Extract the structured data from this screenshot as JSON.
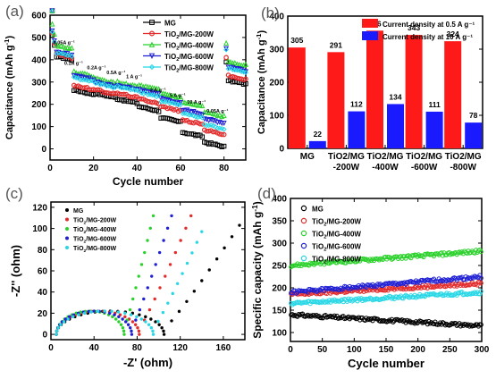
{
  "panel_labels": [
    "(a)",
    "(b)",
    "(c)",
    "(d)"
  ],
  "chart_data": [
    {
      "panel": "(a)",
      "type": "scatter",
      "xlabel": "Cycle number",
      "ylabel": "Capacitance (mAh g",
      "ylabel_sup": "-1",
      "ylabel_close": ")",
      "xlim": [
        0,
        90
      ],
      "ylim": [
        -50,
        600
      ],
      "xticks": [
        "0",
        "20",
        "40",
        "60",
        "80"
      ],
      "yticks": [
        "0",
        "100",
        "200",
        "300",
        "400",
        "500",
        "600"
      ],
      "legend_position": "top-right",
      "annotations": [
        "0.05A g⁻¹",
        "0.1A g⁻¹",
        "0.2A g⁻¹",
        "0.5A g⁻¹",
        "1 A g⁻¹",
        "2 A g⁻¹",
        "5 A g⁻¹",
        "10 A g⁻¹",
        "0.05A g⁻¹"
      ],
      "series": [
        {
          "name": "MG",
          "legend": [
            "MG",
            ""
          ],
          "color": "#000000",
          "marker": "square",
          "plateaus": [
            420,
            265,
            250,
            225,
            190,
            140,
            75,
            30,
            310
          ]
        },
        {
          "name": "TiO2/MG-200W",
          "legend": [
            "TiO",
            "2",
            "/MG-200W"
          ],
          "color": "#e32b2b",
          "marker": "circle",
          "plateaus": [
            430,
            285,
            265,
            250,
            225,
            190,
            130,
            85,
            330
          ]
        },
        {
          "name": "TiO2/MG-400W",
          "legend": [
            "TiO",
            "2",
            "/MG-400W"
          ],
          "color": "#2ad12a",
          "marker": "triangle",
          "plateaus": [
            470,
            345,
            315,
            300,
            285,
            250,
            210,
            165,
            395
          ]
        },
        {
          "name": "TiO2/MG-600W",
          "legend": [
            "TiO",
            "2",
            "/MG-600W"
          ],
          "color": "#1f1fd4",
          "marker": "triangle-down",
          "plateaus": [
            440,
            330,
            300,
            285,
            265,
            225,
            175,
            135,
            370
          ]
        },
        {
          "name": "TiO2/MG-800W",
          "legend": [
            "TiO",
            "2",
            "/MG-800W"
          ],
          "color": "#27d7e6",
          "marker": "diamond",
          "plateaus": [
            435,
            320,
            295,
            280,
            255,
            215,
            160,
            110,
            365
          ]
        }
      ]
    },
    {
      "panel": "(b)",
      "type": "bar",
      "ylabel": "Capacitance (mAh g",
      "ylabel_sup": "-1",
      "ylabel_close": ")",
      "ylim": [
        0,
        400
      ],
      "yticks": [
        "0",
        "100",
        "200",
        "300",
        "400"
      ],
      "categories": [
        [
          "MG",
          ""
        ],
        [
          "TiO2/MG",
          "-200W"
        ],
        [
          "TiO2/MG",
          "-400W"
        ],
        [
          "TiO2/MG",
          "-600W"
        ],
        [
          "TiO2/MG",
          "-800W"
        ]
      ],
      "legend_position": "top",
      "series": [
        {
          "name": "Current density at 0.5 A g⁻¹",
          "color": "#ff1a1a",
          "values": [
            305,
            291,
            356,
            343,
            324
          ]
        },
        {
          "name": "Current density at 10  A g⁻¹",
          "color": "#1a1aff",
          "values": [
            22,
            112,
            134,
            111,
            78
          ]
        }
      ]
    },
    {
      "panel": "(c)",
      "type": "scatter",
      "xlabel": "-Z' (ohm)",
      "ylabel": "-Z'' (ohm)",
      "xlim": [
        0,
        180
      ],
      "ylim": [
        -5,
        125
      ],
      "xticks": [
        "0",
        "40",
        "80",
        "120",
        "160"
      ],
      "yticks": [
        "0",
        "20",
        "40",
        "60",
        "80",
        "100",
        "120"
      ],
      "legend_position": "top-left",
      "series": [
        {
          "name": "MG",
          "legend": [
            "MG",
            ""
          ],
          "color": "#000000",
          "semicircle": [
            5,
            105
          ],
          "tail_end": [
            175,
            103
          ]
        },
        {
          "name": "TiO2/MG-200W",
          "legend": [
            "TiO",
            "2",
            "/MG-200W"
          ],
          "color": "#e32b2b",
          "semicircle": [
            5,
            82
          ],
          "tail_end": [
            130,
            112
          ]
        },
        {
          "name": "TiO2/MG-400W",
          "legend": [
            "TiO",
            "2",
            "/MG-400W"
          ],
          "color": "#2ad12a",
          "semicircle": [
            5,
            68
          ],
          "tail_end": [
            95,
            112
          ]
        },
        {
          "name": "TiO2/MG-600W",
          "legend": [
            "TiO",
            "2",
            "/MG-600W"
          ],
          "color": "#1f1fd4",
          "semicircle": [
            5,
            75
          ],
          "tail_end": [
            112,
            112
          ]
        },
        {
          "name": "TiO2/MG-800W",
          "legend": [
            "TiO",
            "2",
            "/MG-800W"
          ],
          "color": "#27d7e6",
          "semicircle": [
            5,
            95
          ],
          "tail_end": [
            140,
            97
          ]
        }
      ]
    },
    {
      "panel": "(d)",
      "type": "scatter",
      "xlabel": "Cycle number",
      "ylabel": "Specific capacity (mAh g",
      "ylabel_sup": "-1",
      "ylabel_close": ")",
      "xlim": [
        0,
        300
      ],
      "ylim": [
        80,
        400
      ],
      "xticks": [
        "0",
        "50",
        "100",
        "150",
        "200",
        "250",
        "300"
      ],
      "yticks": [
        "100",
        "150",
        "200",
        "250",
        "300",
        "350",
        "400"
      ],
      "legend_position": "top-left",
      "series": [
        {
          "name": "MG",
          "legend": [
            "MG",
            ""
          ],
          "color": "#000000",
          "start": 140,
          "end": 115
        },
        {
          "name": "TiO2/MG-200W",
          "legend": [
            "TiO",
            "2",
            "/MG-200W"
          ],
          "color": "#e32b2b",
          "start": 185,
          "end": 210
        },
        {
          "name": "TiO2/MG-400W",
          "legend": [
            "TiO",
            "2",
            "/MG-400W"
          ],
          "color": "#2ad12a",
          "start": 250,
          "end": 282
        },
        {
          "name": "TiO2/MG-600W",
          "legend": [
            "TiO",
            "2",
            "/MG-600W"
          ],
          "color": "#1f1fd4",
          "start": 190,
          "end": 225
        },
        {
          "name": "TiO2/MG-800W",
          "legend": [
            "TiO",
            "2",
            "/MG-800W"
          ],
          "color": "#27d7e6",
          "start": 165,
          "end": 190
        }
      ]
    }
  ]
}
